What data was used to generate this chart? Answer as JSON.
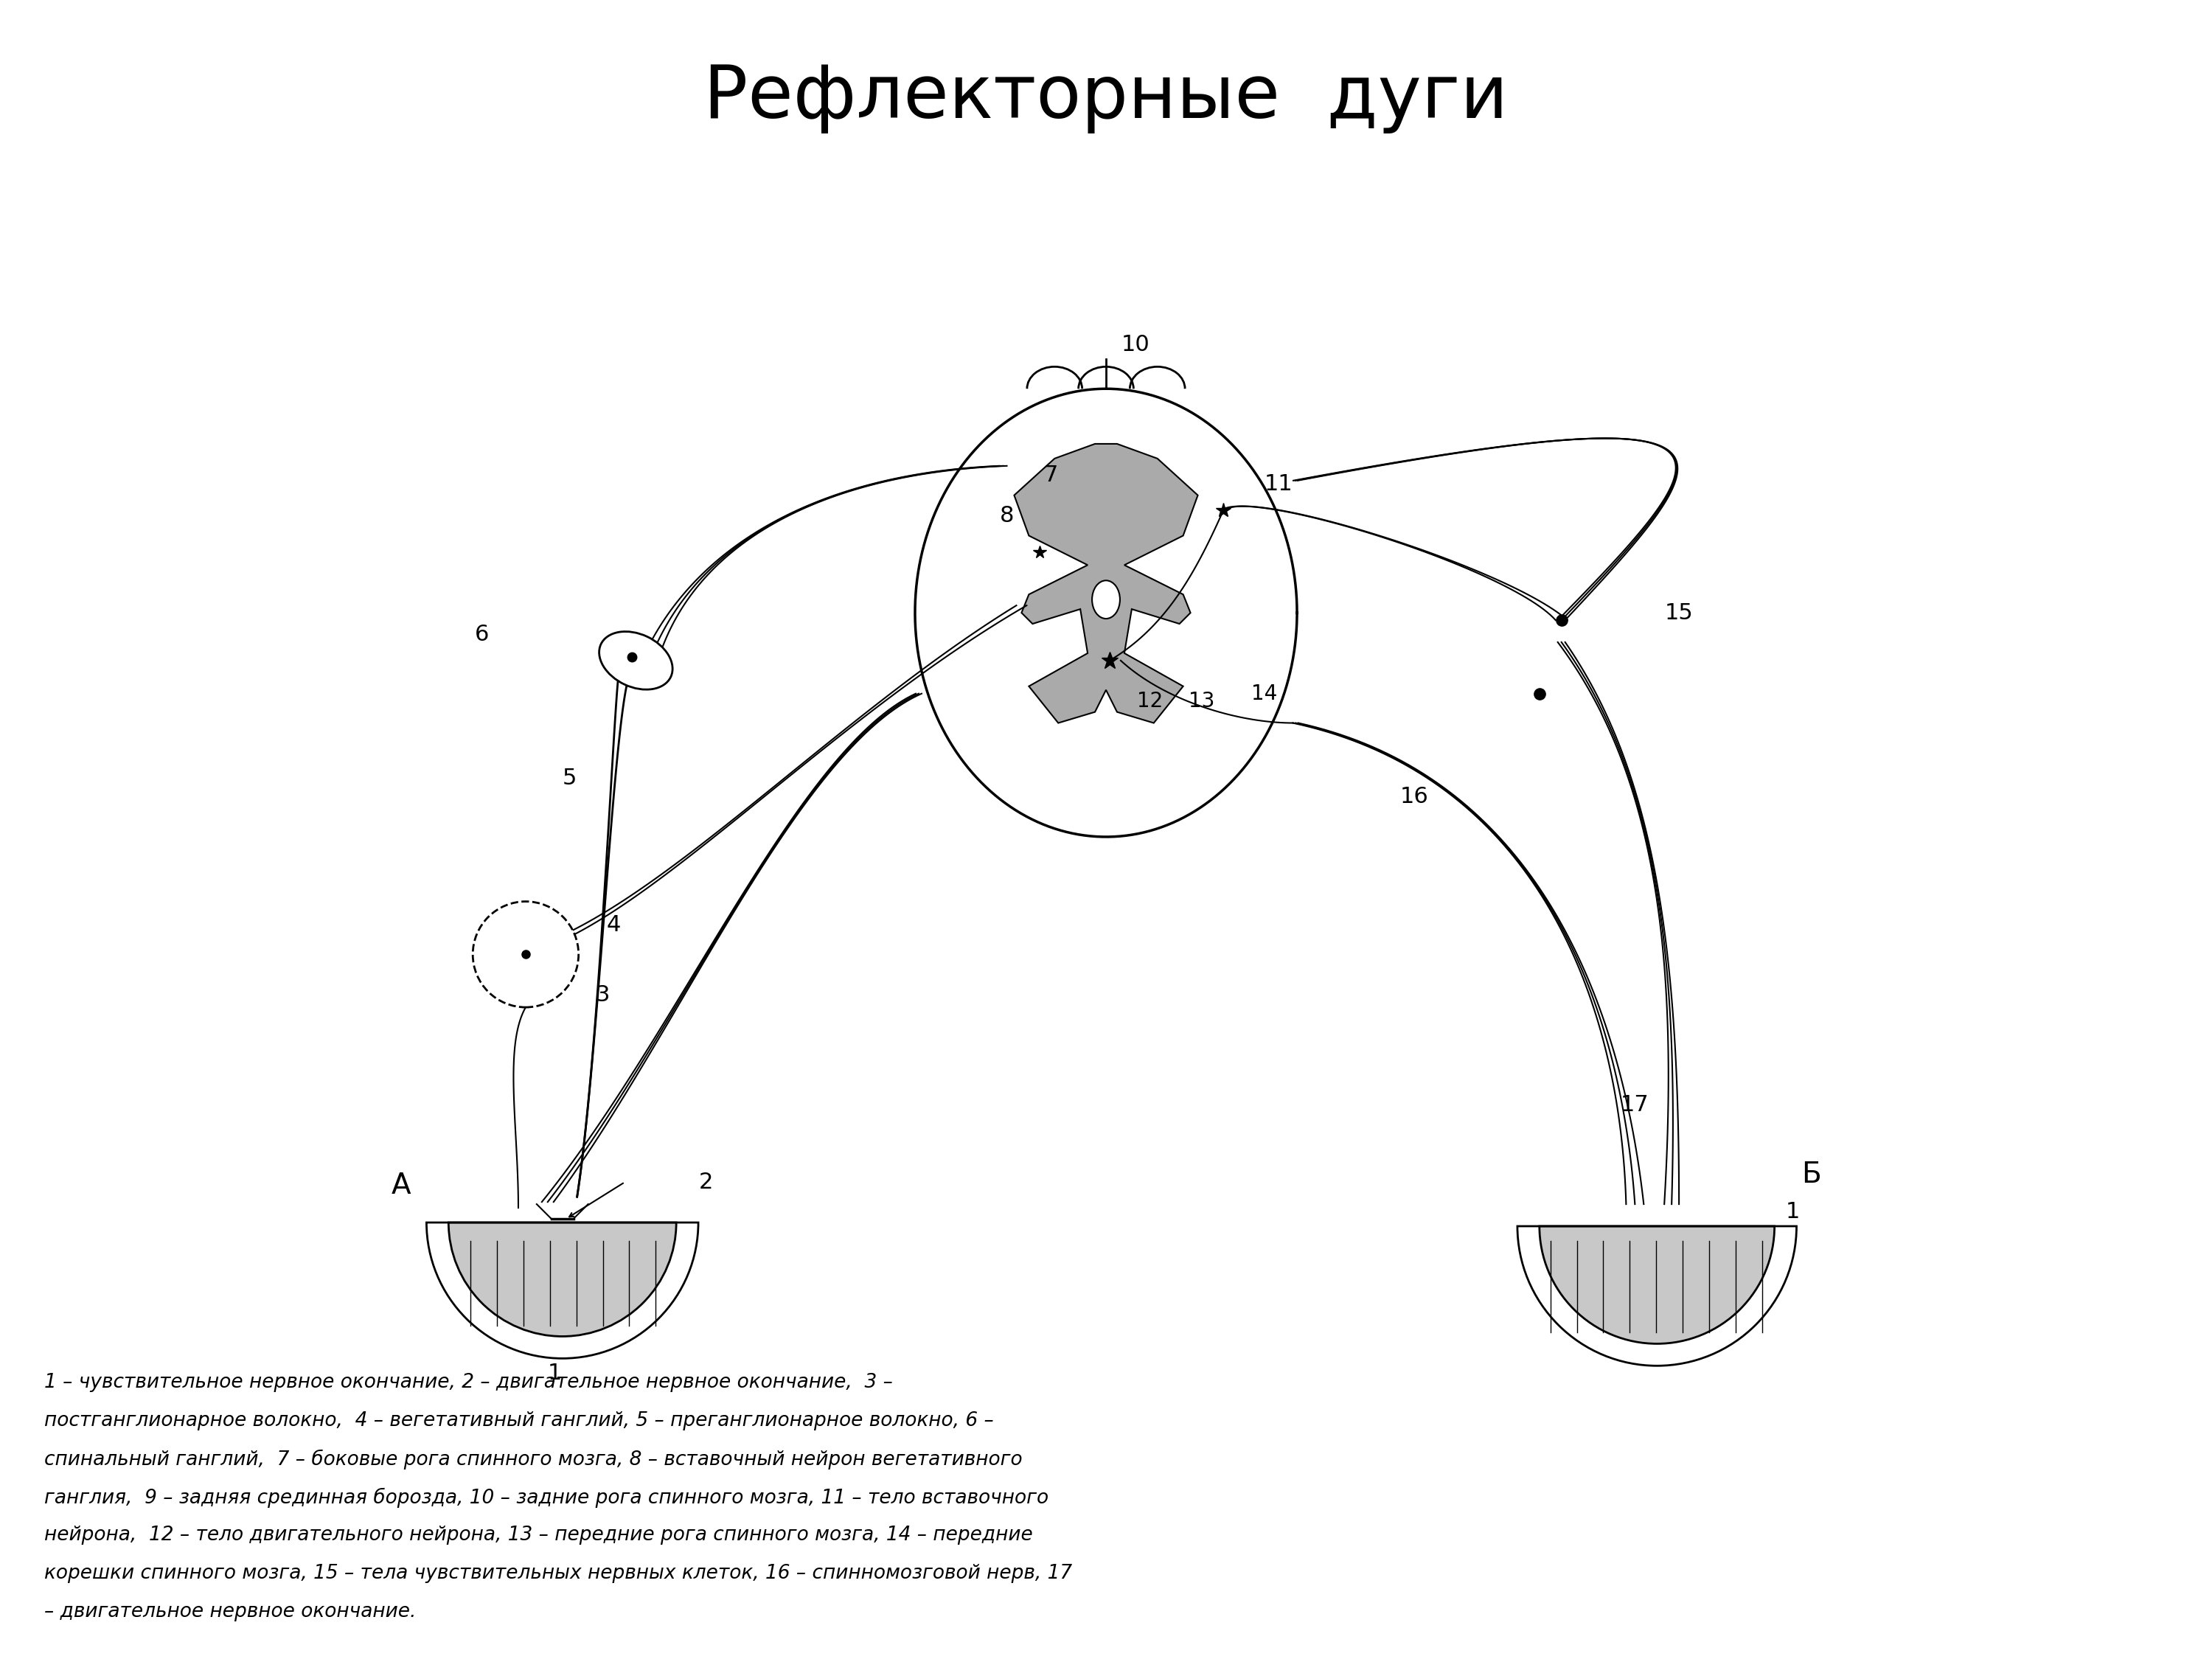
{
  "title": "Рефлекторные  дуги",
  "title_fontsize": 72,
  "bg_color": "#ffffff",
  "line_color": "#000000",
  "caption_line1": "1 – чувствительное нервное окончание, 2 – двигательное нервное окончание,  3 –",
  "caption_line2": "постганглионарное волокно,  4 – вегетативный ганглий, 5 – преганглионарное волокно, 6 –",
  "caption_line3": "спинальный ганглий,  7 – боковые рога спинного мозга, 8 – вставочный нейрон вегетативного",
  "caption_line4": "ганглия,  9 – задняя срединная борозда, 10 – задние рога спинного мозга, 11 – тело вставочного",
  "caption_line5": "нейрона,  12 – тело двигательного нейрона, 13 – передние рога спинного мозга, 14 – передние",
  "caption_line6": "корешки спинного мозга, 15 – тела чувствительных нервных клеток, 16 – спинномозговой нерв, 17",
  "caption_line7": "– двигательное нервное окончание.",
  "label_A": "А",
  "label_B": "Б",
  "gray_color": "#c8c8c8",
  "stipple_color": "#aaaaaa"
}
